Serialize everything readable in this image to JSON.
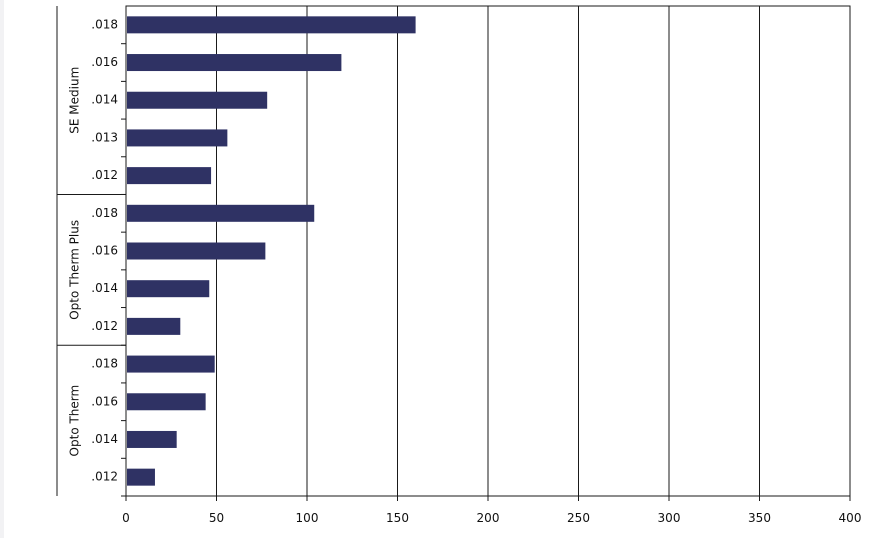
{
  "chart_data": {
    "type": "bar",
    "orientation": "horizontal",
    "title": "",
    "xlabel": "",
    "ylabel": "",
    "xlim": [
      0,
      400
    ],
    "x_ticks": [
      "0",
      "50",
      "100",
      "150",
      "200",
      "250",
      "300",
      "350",
      "400"
    ],
    "grid": true,
    "bar_color": "#2f3264",
    "groups": [
      {
        "name": "SE Medium",
        "categories": [
          ".018",
          ".016",
          ".014",
          ".013",
          ".012"
        ],
        "values": [
          160,
          119,
          78,
          56,
          47
        ]
      },
      {
        "name": "Opto Therm Plus",
        "categories": [
          ".018",
          ".016",
          ".014",
          ".012"
        ],
        "values": [
          104,
          77,
          46,
          30
        ]
      },
      {
        "name": "Opto Therm",
        "categories": [
          ".018",
          ".016",
          ".014",
          ".012"
        ],
        "values": [
          49,
          44,
          28,
          16
        ]
      }
    ]
  }
}
